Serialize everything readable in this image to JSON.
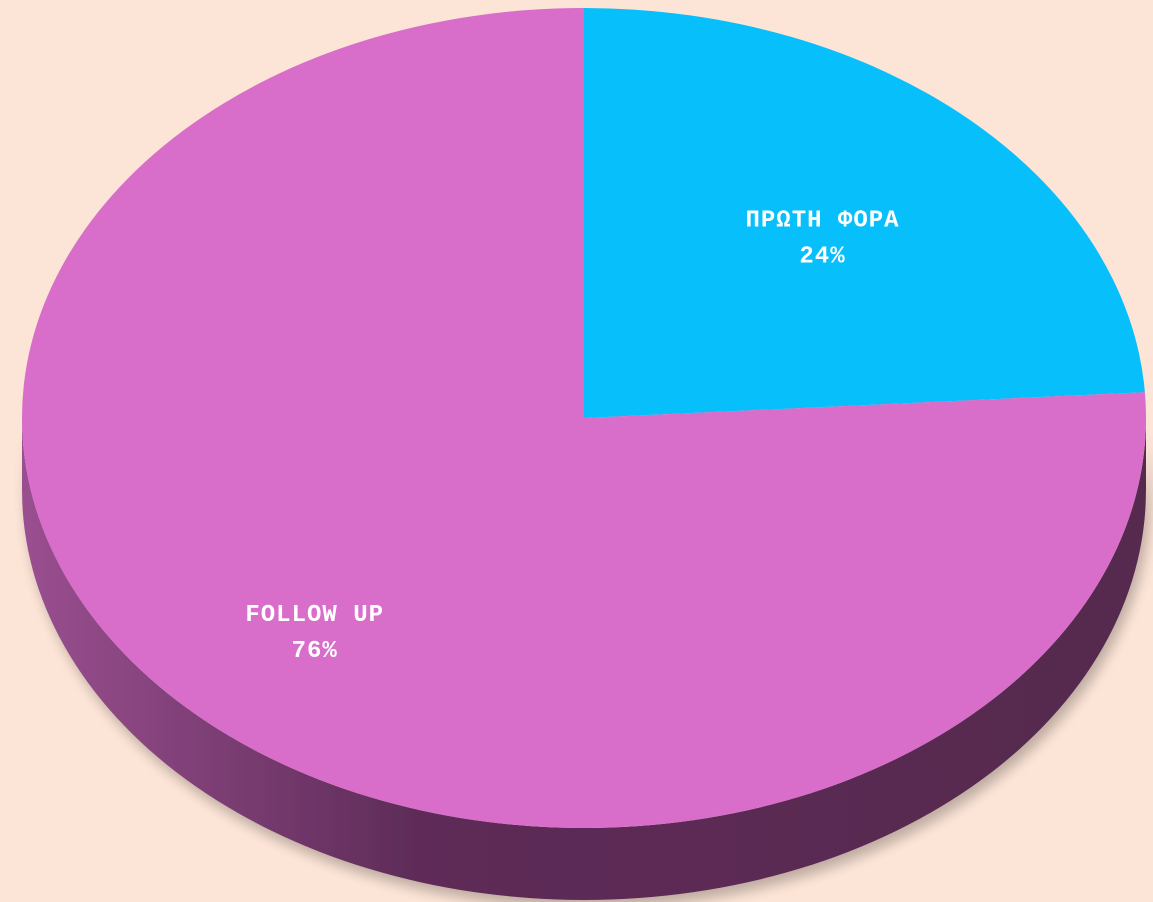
{
  "chart_data": {
    "type": "pie",
    "style": "3d",
    "categories": [
      "ΠΡΩΤΗ ΦΟΡΑ",
      "FOLLOW UP"
    ],
    "values": [
      24,
      76
    ],
    "value_labels": [
      "24%",
      "76%"
    ],
    "colors": [
      "#06bffb",
      "#d86dca"
    ],
    "side_colors": [
      "#0388b3",
      "#56294e"
    ],
    "background": "#fce4d6",
    "legend": "none",
    "data_labels": "inside"
  }
}
